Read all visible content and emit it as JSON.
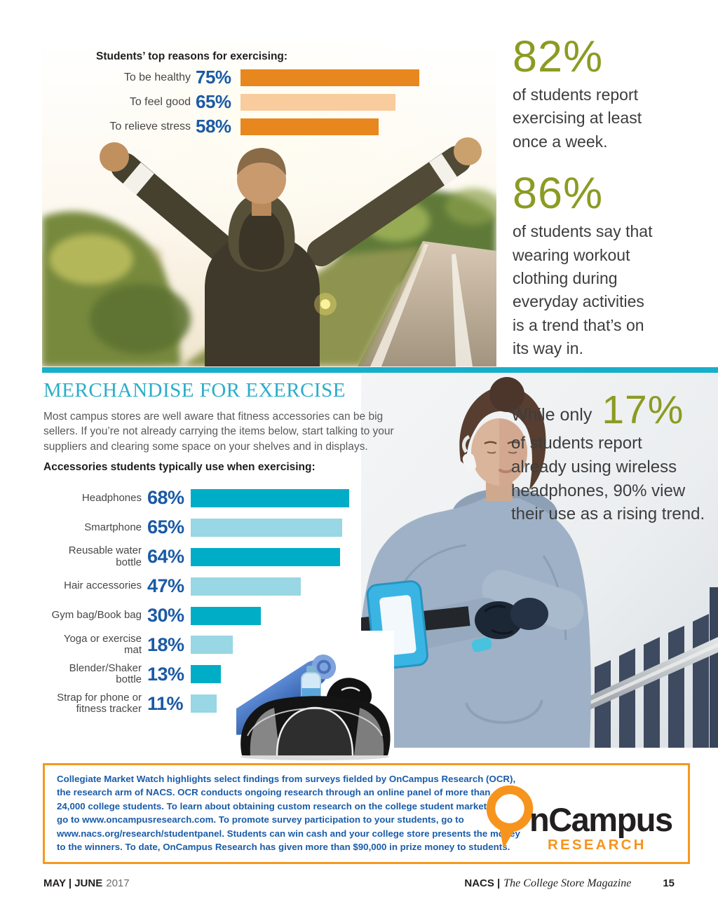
{
  "stats": {
    "stat1_value": "82%",
    "stat1_lines": [
      "of students report",
      "exercising at least",
      "once a week."
    ],
    "stat2_value": "86%",
    "stat2_lines": [
      "of students say that",
      "wearing workout",
      "clothing during",
      "everyday activities",
      "is a trend that’s on",
      "its way in."
    ]
  },
  "merch": {
    "heading": "MERCHANDISE FOR EXERCISE",
    "intro_lines": [
      "Most campus stores are well aware that fitness accessories can be big",
      "sellers. If you’re not already carrying the items below, start talking to your",
      "suppliers and clearing some space on your shelves and in displays."
    ]
  },
  "wireless": {
    "prefix": "While only",
    "value": "17%",
    "lines": [
      "of students report",
      "already using wireless",
      "headphones, 90% view",
      "their use as a rising trend."
    ]
  },
  "chart_data": [
    {
      "type": "bar",
      "orientation": "horizontal",
      "title": "Students’ top reasons for exercising:",
      "categories": [
        "To be healthy",
        "To feel good",
        "To relieve stress"
      ],
      "values": [
        75,
        65,
        58
      ],
      "value_labels": [
        "75%",
        "65%",
        "58%"
      ],
      "bar_colors": [
        "#E8871D",
        "#F8CC9C",
        "#E8871D"
      ],
      "value_label_color": "#1A5AA6",
      "xlim": [
        0,
        100
      ],
      "grid": false,
      "legend": "none"
    },
    {
      "type": "bar",
      "orientation": "horizontal",
      "title": "Accessories students typically use when exercising:",
      "categories": [
        "Headphones",
        "Smartphone",
        "Reusable water bottle",
        "Hair accessories",
        "Gym bag/Book bag",
        "Yoga or exercise mat",
        "Blender/Shaker bottle",
        "Strap for phone or fitness tracker"
      ],
      "values": [
        68,
        65,
        64,
        47,
        30,
        18,
        13,
        11
      ],
      "value_labels": [
        "68%",
        "65%",
        "64%",
        "47%",
        "30%",
        "18%",
        "13%",
        "11%"
      ],
      "bar_colors": [
        "#00ADC7",
        "#98D7E3",
        "#00ADC7",
        "#98D7E3",
        "#00ADC7",
        "#98D7E3",
        "#00ADC7",
        "#98D7E3"
      ],
      "value_label_color": "#1A5AA6",
      "xlim": [
        0,
        100
      ],
      "grid": false,
      "legend": "none"
    }
  ],
  "infobox": {
    "lines": [
      "Collegiate Market Watch highlights select findings from surveys fielded by OnCampus Research (OCR),",
      "the research arm of NACS. OCR conducts ongoing research through an online panel of more than",
      "24,000 college students. To learn about obtaining custom research on the college student market,",
      "go to www.oncampusresearch.com. To promote survey participation to your students, go to",
      "www.nacs.org/research/studentpanel. Students can win cash and your college store presents the money",
      "to the winners. To date, OnCampus Research has given more than $90,000 in prize money to students."
    ]
  },
  "logo": {
    "main": "nCampus",
    "sub": "RESEARCH"
  },
  "footer": {
    "issue_bold": "MAY | JUNE",
    "issue_year": "2017",
    "brand": "NACS |",
    "magazine": "The College Store Magazine",
    "page_number": "15"
  },
  "colors": {
    "accent_teal": "#17AEC9",
    "bar_teal_dark": "#00ADC7",
    "bar_teal_light": "#98D7E3",
    "bar_orange_dark": "#E8871D",
    "bar_orange_light": "#F8CC9C",
    "pct_blue": "#1A5AA6",
    "stat_olive": "#8C9B22",
    "box_border_orange": "#F6991E",
    "box_text_blue": "#1A5CA9",
    "logo_orange": "#F7941D"
  }
}
